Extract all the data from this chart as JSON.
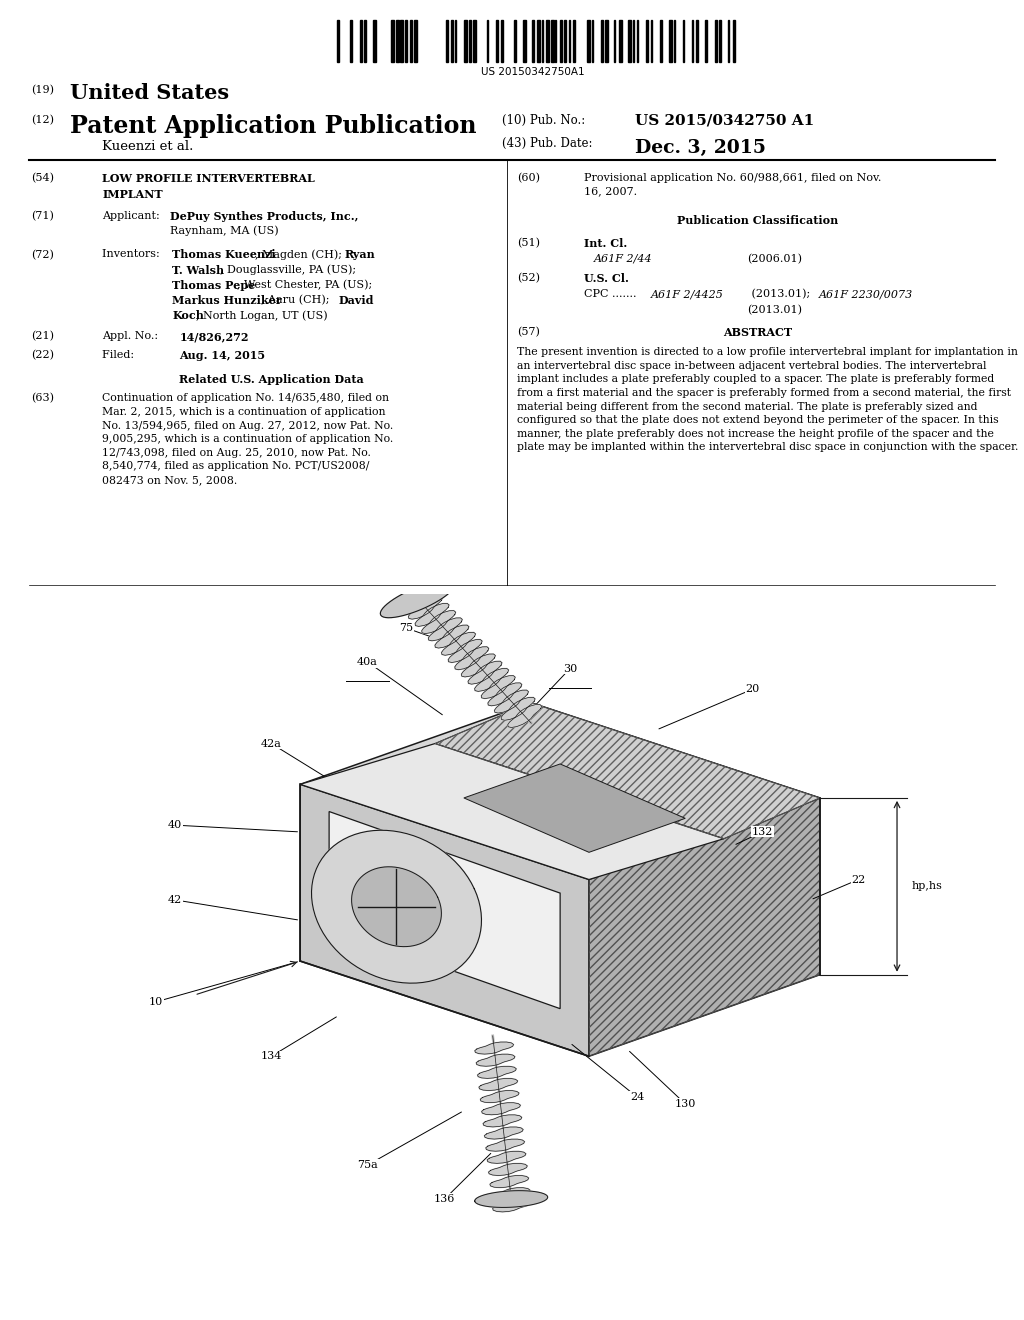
{
  "background_color": "#ffffff",
  "barcode_text": "US 20150342750A1",
  "patent_number_label": "(19)",
  "patent_number_title": "United States",
  "pub_type_label": "(12)",
  "pub_type_title": "Patent Application Publication",
  "pub_no_label": "(10) Pub. No.:",
  "pub_no_value": "US 2015/0342750 A1",
  "pub_date_label": "(43) Pub. Date:",
  "pub_date_value": "Dec. 3, 2015",
  "inventor_name": "Kueenzi et al.",
  "abstract_text": "The present invention is directed to a low profile intervertebral implant for implantation in an intervertebral disc space in-between adjacent vertebral bodies. The intervertebral implant includes a plate preferably coupled to a spacer. The plate is preferably formed from a first material and the spacer is preferably formed from a second material, the first material being different from the second material. The plate is preferably sized and configured so that the plate does not extend beyond the perimeter of the spacer. In this manner, the plate preferably does not increase the height profile of the spacer and the plate may be implanted within the intervertebral disc space in conjunction with the spacer.",
  "related_text": "Continuation of application No. 14/635,480, filed on\nMar. 2, 2015, which is a continuation of application\nNo. 13/594,965, filed on Aug. 27, 2012, now Pat. No.\n9,005,295, which is a continuation of application No.\n12/743,098, filed on Aug. 25, 2010, now Pat. No.\n8,540,774, filed as application No. PCT/US2008/\n082473 on Nov. 5, 2008."
}
